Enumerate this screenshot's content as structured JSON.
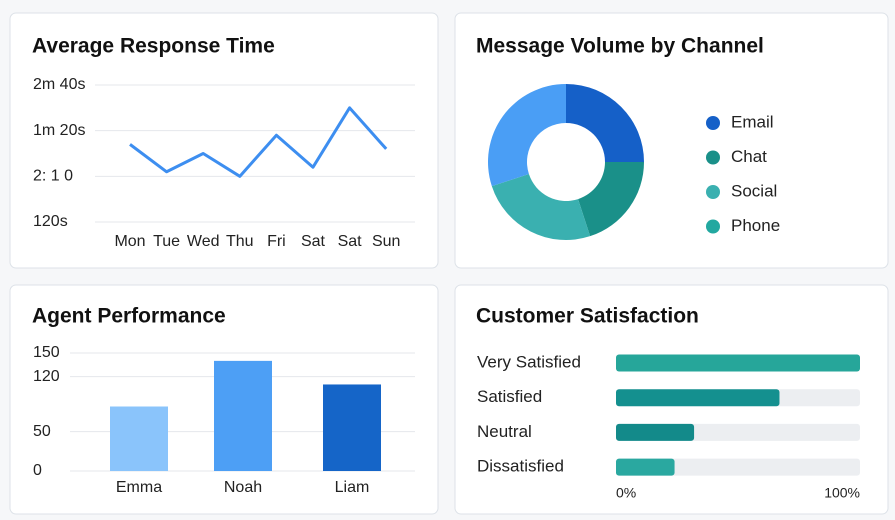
{
  "chart_data": [
    {
      "type": "line",
      "title": "Average Response Time",
      "categories": [
        "Mon",
        "Tue",
        "Wed",
        "Thu",
        "Fri",
        "Sat",
        "Sat",
        "Sun"
      ],
      "values": [
        1.7,
        1.1,
        1.5,
        1.0,
        1.9,
        1.2,
        2.5,
        1.6
      ],
      "color": "#3d8ef0",
      "ylim": [
        0,
        3
      ],
      "yticks": [
        {
          "value": 3,
          "label": "2m 40s"
        },
        {
          "value": 2,
          "label": "1m 20s"
        },
        {
          "value": 1,
          "label": "2: 1 0"
        },
        {
          "value": 0,
          "label": "120s"
        }
      ],
      "grid": true
    },
    {
      "type": "pie",
      "title": "Message Volume by Channel",
      "categories": [
        "Email",
        "Chat",
        "Social",
        "Phone"
      ],
      "values": [
        25,
        20,
        25,
        30
      ],
      "colors": [
        "#1560c8",
        "#1a9089",
        "#3ab0b0",
        "#4a9ef5"
      ],
      "legend_colors": [
        "#1560c8",
        "#1a9089",
        "#3ab0b0",
        "#22a8a0"
      ]
    },
    {
      "type": "bar",
      "title": "Agent Performance",
      "categories": [
        "Emma",
        "Noah",
        "Liam"
      ],
      "values": [
        82,
        140,
        110
      ],
      "colors": [
        "#8ac4fb",
        "#4d9ff5",
        "#1565c8"
      ],
      "ylim": [
        0,
        150
      ],
      "yticks": [
        150,
        120,
        50,
        0
      ],
      "grid": true
    },
    {
      "type": "hbar",
      "title": "Customer Satisfaction",
      "categories": [
        "Very Satisfied",
        "Satisfied",
        "Neutral",
        "Dissatisfied"
      ],
      "values": [
        100,
        67,
        32,
        24
      ],
      "colors": [
        "#26a69a",
        "#14908f",
        "#138a8a",
        "#2aa8a0"
      ],
      "xlim": [
        0,
        100
      ],
      "xticks": [
        {
          "value": 0,
          "label": "0%"
        },
        {
          "value": 100,
          "label": "100%"
        }
      ]
    }
  ]
}
